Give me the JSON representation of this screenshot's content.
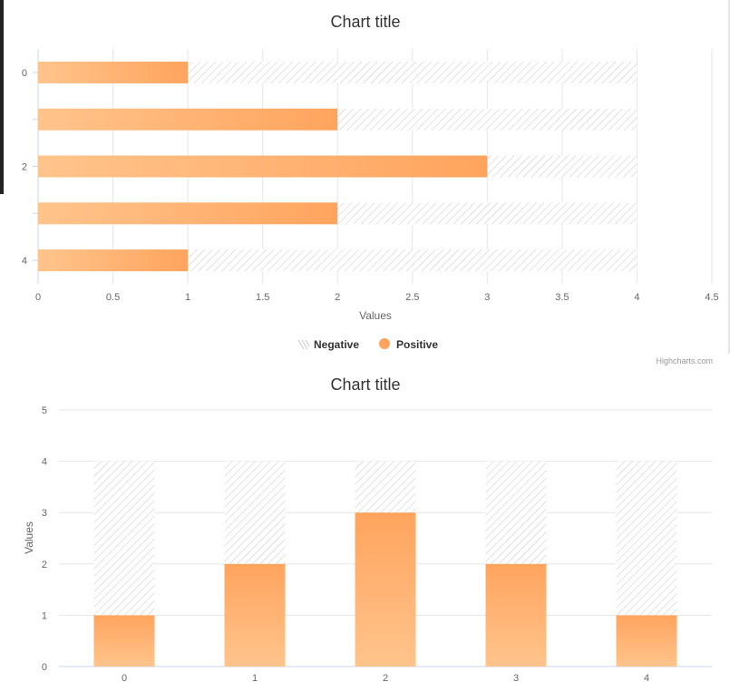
{
  "chart_data": [
    {
      "type": "bar",
      "orientation": "horizontal",
      "title": "Chart title",
      "xlabel": "",
      "ylabel": "Values",
      "categories": [
        "0",
        "1",
        "2",
        "3",
        "4"
      ],
      "category_tick_labels_shown": [
        "0",
        "",
        "2",
        "",
        "4"
      ],
      "series": [
        {
          "name": "Negative",
          "values": [
            4,
            4,
            4,
            4,
            4
          ],
          "fill": "hatched",
          "color": "#c8c8c8"
        },
        {
          "name": "Positive",
          "values": [
            1,
            2,
            3,
            2,
            1
          ],
          "fill": "gradient",
          "color": "#ffa45e",
          "color_light": "#ffc48c"
        }
      ],
      "value_axis": {
        "range": [
          0,
          4.5
        ],
        "ticks": [
          "0",
          "0.5",
          "1",
          "1.5",
          "2",
          "2.5",
          "3",
          "3.5",
          "4",
          "4.5"
        ]
      },
      "grid": true,
      "legend_placement": "bottom-center"
    },
    {
      "type": "bar",
      "orientation": "vertical",
      "title": "Chart title",
      "xlabel": "",
      "ylabel": "Values",
      "categories": [
        "0",
        "1",
        "2",
        "3",
        "4"
      ],
      "series": [
        {
          "name": "Negative",
          "values": [
            4,
            4,
            4,
            4,
            4
          ],
          "fill": "hatched",
          "color": "#c8c8c8"
        },
        {
          "name": "Positive",
          "values": [
            1,
            2,
            3,
            2,
            1
          ],
          "fill": "gradient",
          "color": "#ffa45e",
          "color_light": "#ffc48c"
        }
      ],
      "value_axis": {
        "range": [
          0,
          5
        ],
        "ticks": [
          "0",
          "1",
          "2",
          "3",
          "4",
          "5"
        ]
      },
      "grid": true
    }
  ],
  "legend": [
    {
      "name": "Negative",
      "symbol": "hatch"
    },
    {
      "name": "Positive",
      "symbol": "circle"
    }
  ],
  "credits": "Highcharts.com",
  "colors": {
    "positive": "#ffa45e",
    "positive_light": "#ffc48c",
    "hatch": "#c8c8c8",
    "grid": "#e6e6e6",
    "axis_line": "#ccd6eb",
    "label": "#666666",
    "title": "#333333"
  }
}
